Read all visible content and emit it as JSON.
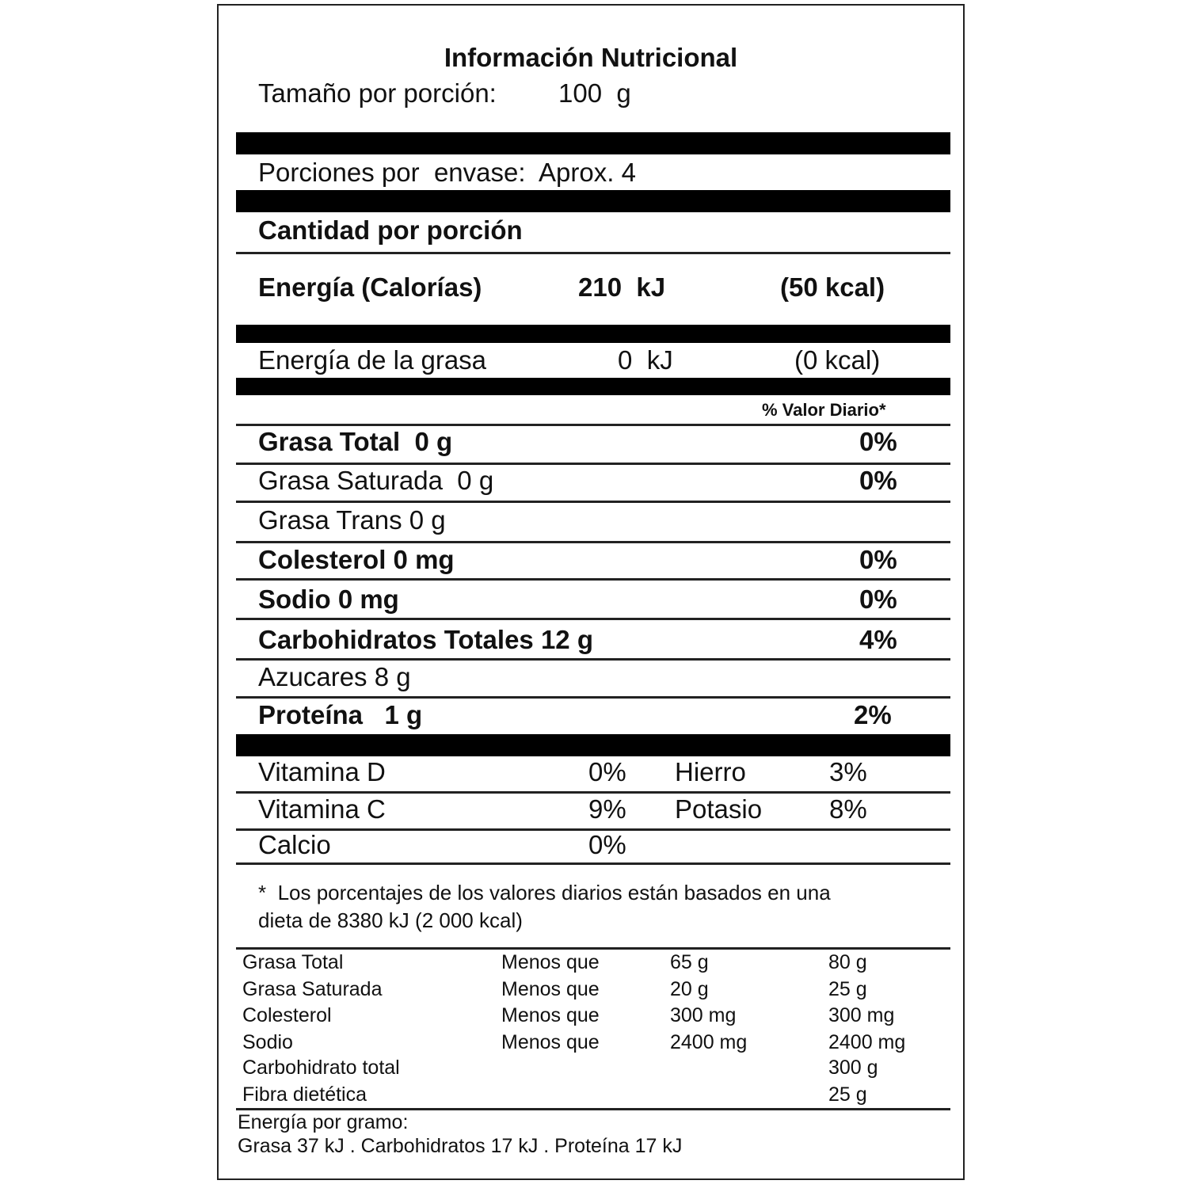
{
  "header": {
    "title": "Información Nutricional",
    "serving_size_label": "Tamaño por porción:",
    "serving_size": "100  g",
    "servings_per_container": "Porciones por  envase:  Aprox. 4"
  },
  "amount_per_serving": "Cantidad por porción",
  "energy": {
    "label": "Energía (Calorías)",
    "kj": "210  kJ",
    "kcal": "(50 kcal)"
  },
  "fat_energy": {
    "label": "Energía de la grasa",
    "kj": "0  kJ",
    "kcal": "(0 kcal)"
  },
  "daily_value_header": "% Valor Diario*",
  "nutrients": [
    {
      "label": "Grasa Total  0 g",
      "dv": "0%"
    },
    {
      "label": "Grasa Saturada  0 g",
      "dv": "0%"
    },
    {
      "label": "Grasa Trans 0 g"
    },
    {
      "label": "Colesterol 0 mg",
      "dv": "0%"
    },
    {
      "label": "Sodio 0 mg",
      "dv": "0%"
    },
    {
      "label": "Carbohidratos Totales 12 g",
      "dv": "4%"
    },
    {
      "label": "Azucares 8 g"
    },
    {
      "label": "Proteína   1 g",
      "dv": "2%"
    }
  ],
  "vitamins": [
    [
      "Vitamina D",
      "0%",
      "Hierro",
      "3%"
    ],
    [
      "Vitamina C",
      "9%",
      "Potasio",
      "8%"
    ],
    [
      "Calcio",
      "0%"
    ]
  ],
  "footnote": [
    "*  Los porcentajes de los valores diarios están basados en una",
    "dieta de 8380 kJ (2 000 kcal)"
  ],
  "reference_table": [
    [
      "Grasa Total",
      "Menos que",
      "65 g",
      "80 g"
    ],
    [
      "Grasa Saturada",
      "Menos que",
      "20 g",
      "25 g"
    ],
    [
      "Colesterol",
      "Menos que",
      "300 mg",
      "300 mg"
    ],
    [
      "Sodio",
      "Menos que",
      "2400 mg",
      "2400 mg"
    ],
    [
      "Carbohidrato total",
      "300 g"
    ],
    [
      "Fibra dietética",
      "25 g"
    ]
  ],
  "energy_per_gram": {
    "title": "Energía por gramo:",
    "values": "Grasa 37 kJ . Carbohidratos 17 kJ . Proteína 17 kJ"
  }
}
